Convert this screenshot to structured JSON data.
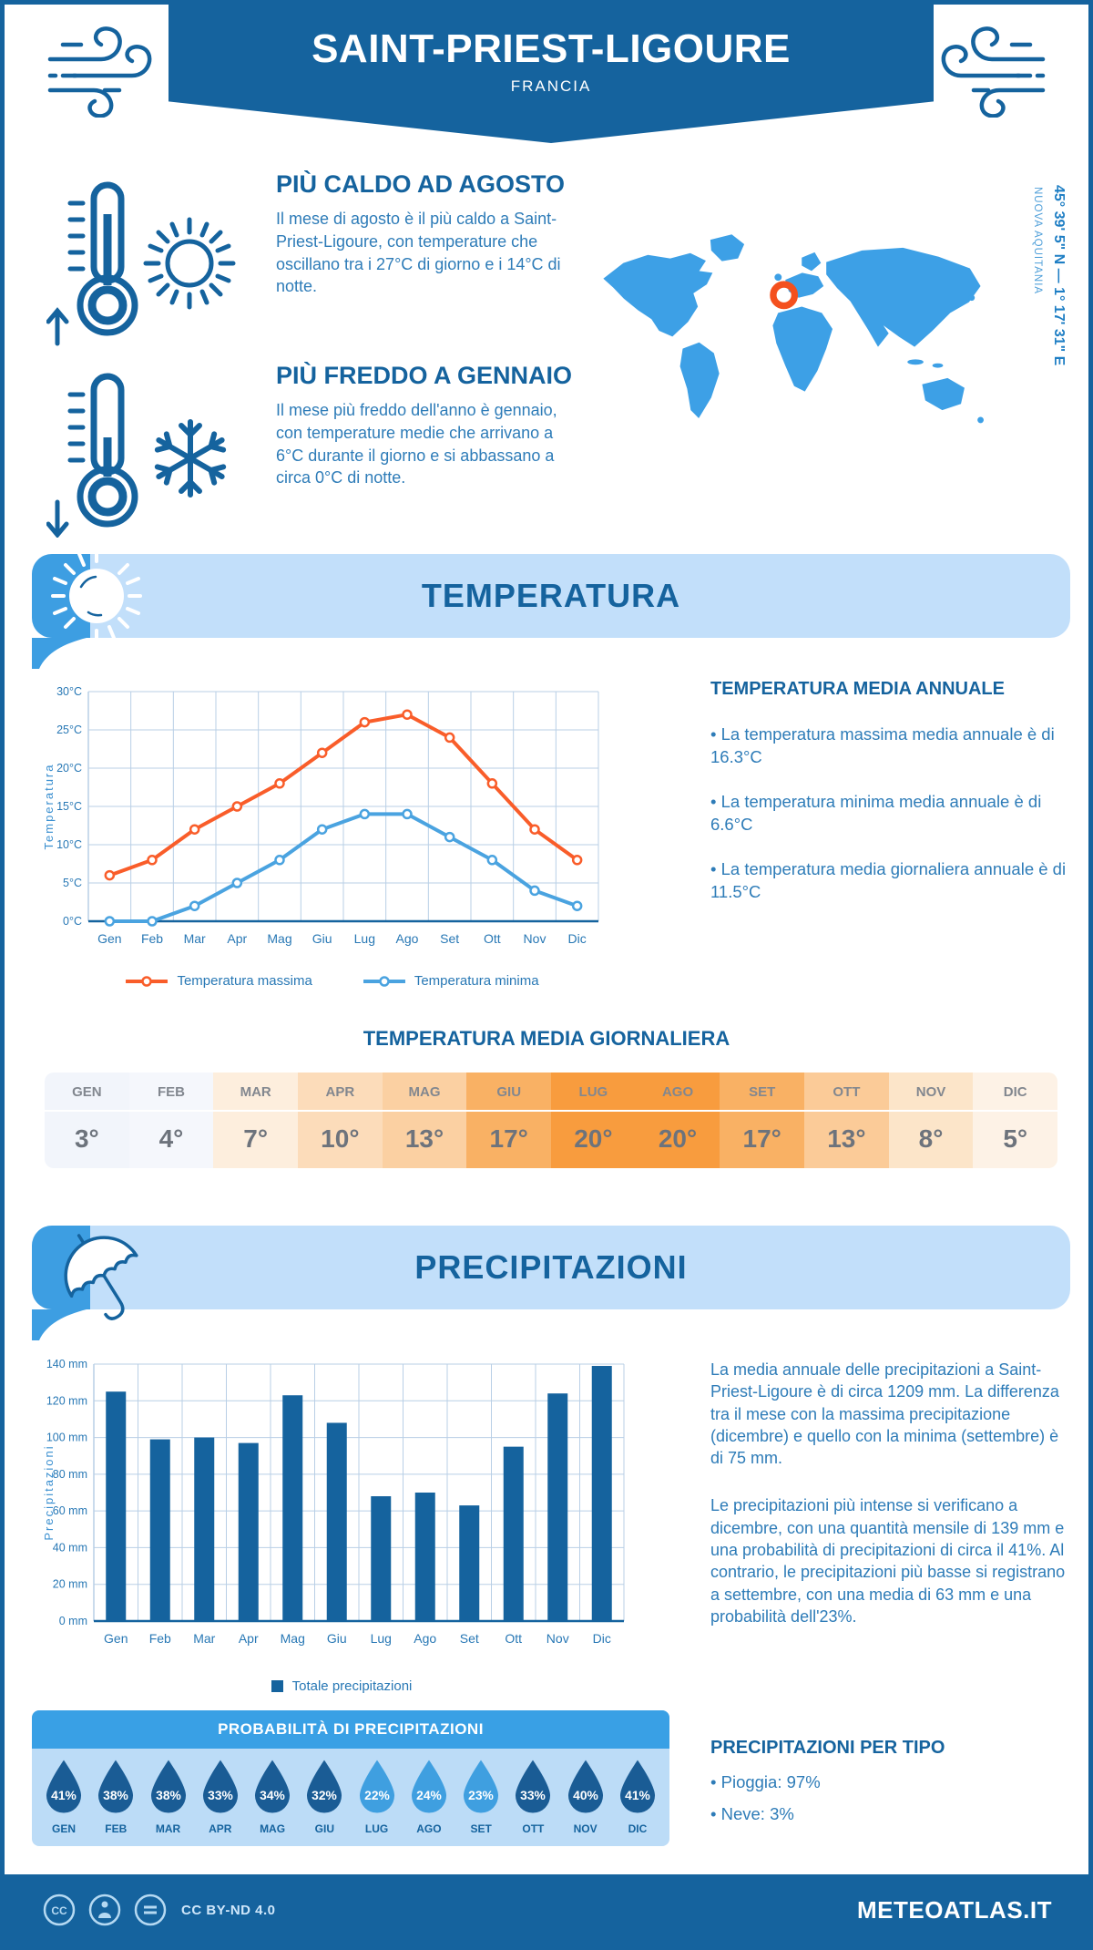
{
  "header": {
    "title": "SAINT-PRIEST-LIGOURE",
    "subtitle": "FRANCIA"
  },
  "location": {
    "coordinates": "45° 39' 5\" N — 1° 17' 31\" E",
    "region": "NUOVA AQUITANIA"
  },
  "highlights": {
    "warm": {
      "title": "PIÙ CALDO AD AGOSTO",
      "text": "Il mese di agosto è il più caldo a Saint-Priest-Ligoure, con temperature che oscillano tra i 27°C di giorno e i 14°C di notte."
    },
    "cold": {
      "title": "PIÙ FREDDO A GENNAIO",
      "text": "Il mese più freddo dell'anno è gennaio, con temperature medie che arrivano a 6°C durante il giorno e si abbassano a circa 0°C di notte."
    }
  },
  "sections": {
    "temperature": "TEMPERATURA",
    "precipitation": "PRECIPITAZIONI"
  },
  "annual_temperature": {
    "title": "TEMPERATURA MEDIA ANNUALE",
    "bullets": [
      "• La temperatura massima media annuale è di 16.3°C",
      "• La temperatura minima media annuale è di 6.6°C",
      "• La temperatura media giornaliera annuale è di 11.5°C"
    ]
  },
  "daily_temperature": {
    "title": "TEMPERATURA MEDIA GIORNALIERA",
    "months": [
      "GEN",
      "FEB",
      "MAR",
      "APR",
      "MAG",
      "GIU",
      "LUG",
      "AGO",
      "SET",
      "OTT",
      "NOV",
      "DIC"
    ],
    "values": [
      "3°",
      "4°",
      "7°",
      "10°",
      "13°",
      "17°",
      "20°",
      "20°",
      "17°",
      "13°",
      "8°",
      "5°"
    ],
    "cell_colors": [
      "#f2f5fb",
      "#f5f7fc",
      "#fdeedd",
      "#fcdcba",
      "#fbd0a2",
      "#f9b164",
      "#f89c3e",
      "#f89c3e",
      "#f9b164",
      "#fbcb98",
      "#fce5c9",
      "#fdf2e6"
    ]
  },
  "precip_text": {
    "para1": "La media annuale delle precipitazioni a Saint-Priest-Ligoure è di circa 1209 mm. La differenza tra il mese con la massima precipitazione (dicembre) e quello con la minima (settembre) è di 75 mm.",
    "para2": "Le precipitazioni più intense si verificano a dicembre, con una quantità mensile di 139 mm e una probabilità di precipitazioni di circa il 41%. Al contrario, le precipitazioni più basse si registrano a settembre, con una media di 63 mm e una probabilità dell'23%."
  },
  "probability": {
    "title": "PROBABILITÀ DI PRECIPITAZIONI",
    "months": [
      "GEN",
      "FEB",
      "MAR",
      "APR",
      "MAG",
      "GIU",
      "LUG",
      "AGO",
      "SET",
      "OTT",
      "NOV",
      "DIC"
    ],
    "values": [
      "41%",
      "38%",
      "38%",
      "33%",
      "34%",
      "32%",
      "22%",
      "24%",
      "23%",
      "33%",
      "40%",
      "41%"
    ],
    "drop_colors": [
      "#1a5c95",
      "#1a5c95",
      "#1a5c95",
      "#1a5c95",
      "#1a5c95",
      "#1a5c95",
      "#3f9fe0",
      "#3f9fe0",
      "#3f9fe0",
      "#1a5c95",
      "#1a5c95",
      "#1a5c95"
    ]
  },
  "precip_type": {
    "title": "PRECIPITAZIONI PER TIPO",
    "bullets": [
      "• Pioggia: 97%",
      "• Neve: 3%"
    ]
  },
  "footer": {
    "license": "CC BY-ND 4.0",
    "brand": "METEOATLAS.IT"
  },
  "colors": {
    "dark_blue": "#15639e",
    "medium_blue": "#3d9ee2",
    "light_blue_bg": "#c2dffa",
    "text_blue": "#2e7cb8",
    "grid": "#b9cfe6",
    "axis_label": "#2878b5",
    "marker_ring_orange": "#f4501e"
  },
  "chart_data": [
    {
      "type": "line",
      "categories": [
        "Gen",
        "Feb",
        "Mar",
        "Apr",
        "Mag",
        "Giu",
        "Lug",
        "Ago",
        "Set",
        "Ott",
        "Nov",
        "Dic"
      ],
      "series": [
        {
          "name": "Temperatura massima",
          "color": "#f95d2a",
          "values": [
            6,
            8,
            12,
            15,
            18,
            22,
            26,
            27,
            24,
            18,
            12,
            8
          ]
        },
        {
          "name": "Temperatura minima",
          "color": "#4aa3e0",
          "values": [
            0,
            0,
            2,
            5,
            8,
            12,
            14,
            14,
            11,
            8,
            4,
            2
          ]
        }
      ],
      "ylabel": "Temperatura",
      "ylim": [
        0,
        30
      ],
      "ytick_step": 5,
      "ytick_suffix": "°C",
      "grid": true,
      "legend_position": "bottom"
    },
    {
      "type": "bar",
      "categories": [
        "Gen",
        "Feb",
        "Mar",
        "Apr",
        "Mag",
        "Giu",
        "Lug",
        "Ago",
        "Set",
        "Ott",
        "Nov",
        "Dic"
      ],
      "series": [
        {
          "name": "Totale precipitazioni",
          "color": "#15639e",
          "values": [
            125,
            99,
            100,
            97,
            123,
            108,
            68,
            70,
            63,
            95,
            124,
            139
          ]
        }
      ],
      "ylabel": "Precipitazioni",
      "ylim": [
        0,
        140
      ],
      "ytick_step": 20,
      "ytick_suffix": " mm",
      "grid": true,
      "legend_position": "bottom"
    }
  ]
}
